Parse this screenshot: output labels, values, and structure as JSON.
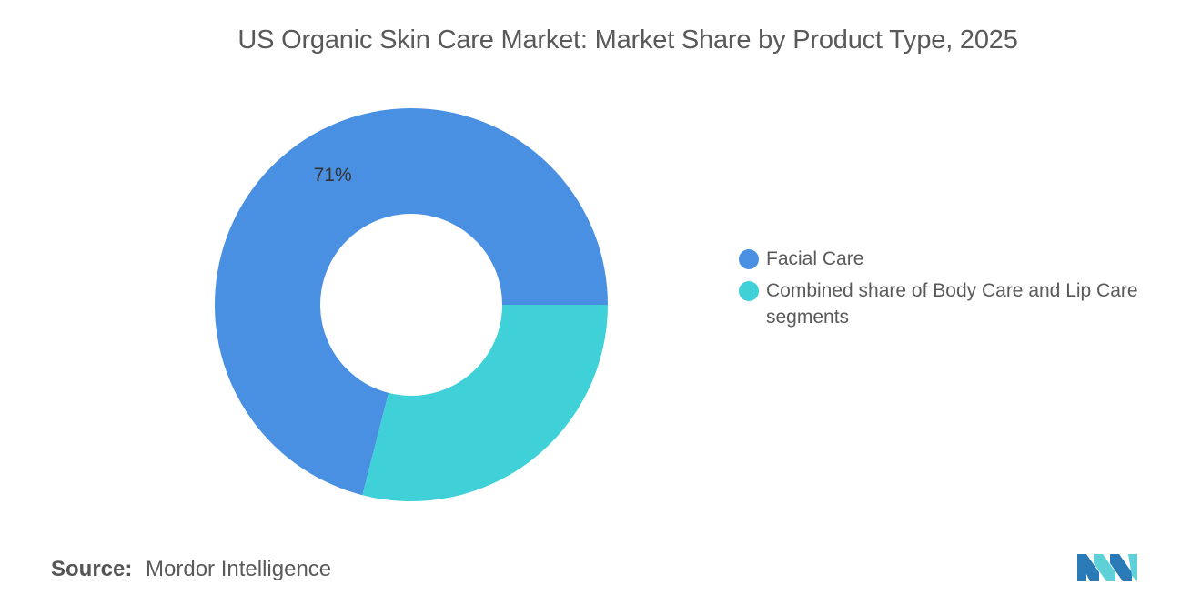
{
  "chart_data": {
    "type": "pie",
    "subtype": "donut",
    "title": "US Organic Skin Care Market: Market Share by Product Type, 2025",
    "series": [
      {
        "name": "Facial Care",
        "value": 71,
        "label": "71%",
        "color": "#4a90e2"
      },
      {
        "name": "Combined share of Body Care and Lip Care segments",
        "value": 29,
        "label": "",
        "color": "#3fd0d8"
      }
    ],
    "legend_position": "right"
  },
  "footer": {
    "source_key": "Source:",
    "source_value": "Mordor Intelligence"
  },
  "brand": {
    "logo_icon": "mordor-intelligence-logo-icon",
    "logo_colors": [
      "#2a7ab8",
      "#5fd0d8"
    ]
  }
}
